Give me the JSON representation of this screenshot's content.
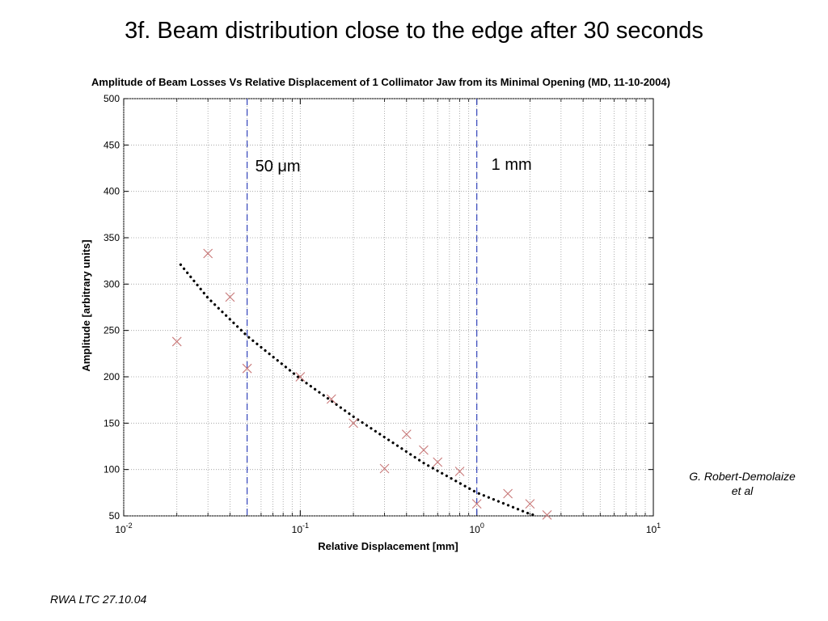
{
  "slide": {
    "title": "3f. Beam distribution close to the edge after 30 seconds",
    "author_line1": "G. Robert-Demolaize",
    "author_line2": "et al",
    "footer": "RWA LTC 27.10.04"
  },
  "chart_data": {
    "type": "scatter",
    "title": "Amplitude of Beam Losses Vs Relative Displacement of 1 Collimator Jaw from its Minimal Opening (MD, 11-10-2004)",
    "xlabel": "Relative Displacement [mm]",
    "ylabel": "Amplitude [arbitrary units]",
    "xscale": "log",
    "xlim": [
      0.01,
      10
    ],
    "ylim": [
      50,
      500
    ],
    "grid": true,
    "x_ticks": [
      {
        "value": 0.01,
        "base": "10",
        "exp": "-2"
      },
      {
        "value": 0.1,
        "base": "10",
        "exp": "-1"
      },
      {
        "value": 1,
        "base": "10",
        "exp": "0"
      },
      {
        "value": 10,
        "base": "10",
        "exp": "1"
      }
    ],
    "y_ticks": [
      50,
      100,
      150,
      200,
      250,
      300,
      350,
      400,
      450,
      500
    ],
    "series": [
      {
        "marker": "x",
        "color": "#c87878",
        "x": [
          0.02,
          0.03,
          0.04,
          0.05,
          0.1,
          0.15,
          0.2,
          0.3,
          0.4,
          0.5,
          0.6,
          0.8,
          1.0,
          1.5,
          2.0,
          2.5
        ],
        "y": [
          238,
          333,
          286,
          209,
          200,
          176,
          150,
          101,
          138,
          121,
          108,
          98,
          63,
          74,
          63,
          51
        ]
      },
      {
        "style": "dotted-fit",
        "color": "#000000",
        "x": [
          0.021,
          0.03,
          0.05,
          0.1,
          0.2,
          0.5,
          1.0,
          2.0,
          2.2
        ],
        "y": [
          321,
          285,
          244,
          198,
          157,
          107,
          75,
          52,
          50
        ]
      }
    ],
    "reference_lines": [
      {
        "x": 0.05,
        "label": "50 μm",
        "color": "#3344bb"
      },
      {
        "x": 1.0,
        "label": "1 mm",
        "color": "#3344bb"
      }
    ]
  }
}
